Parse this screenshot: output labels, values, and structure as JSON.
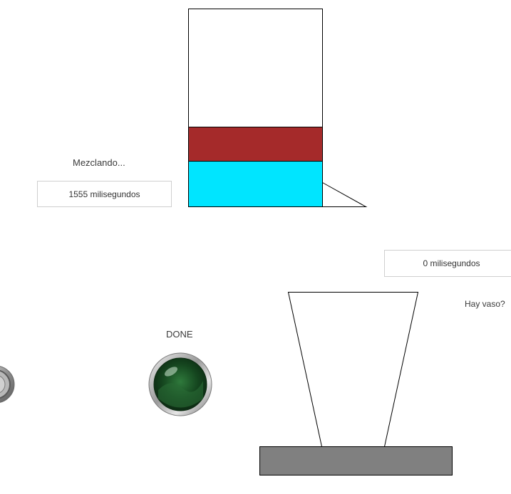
{
  "mixer": {
    "status_label": "Mezclando...",
    "timer_text": "1555 milisegundos",
    "upper_layer_color": "#a52a2a",
    "lower_layer_color": "#00e5ff"
  },
  "dispenser": {
    "timer_text": "0 milisegundos",
    "cup_present_label": "Hay vaso?",
    "base_color": "#808080"
  },
  "done_light": {
    "label": "DONE",
    "state": "off",
    "color": "#1f5a2a"
  },
  "left_light": {
    "label": "",
    "color": "#9a9a9a"
  }
}
